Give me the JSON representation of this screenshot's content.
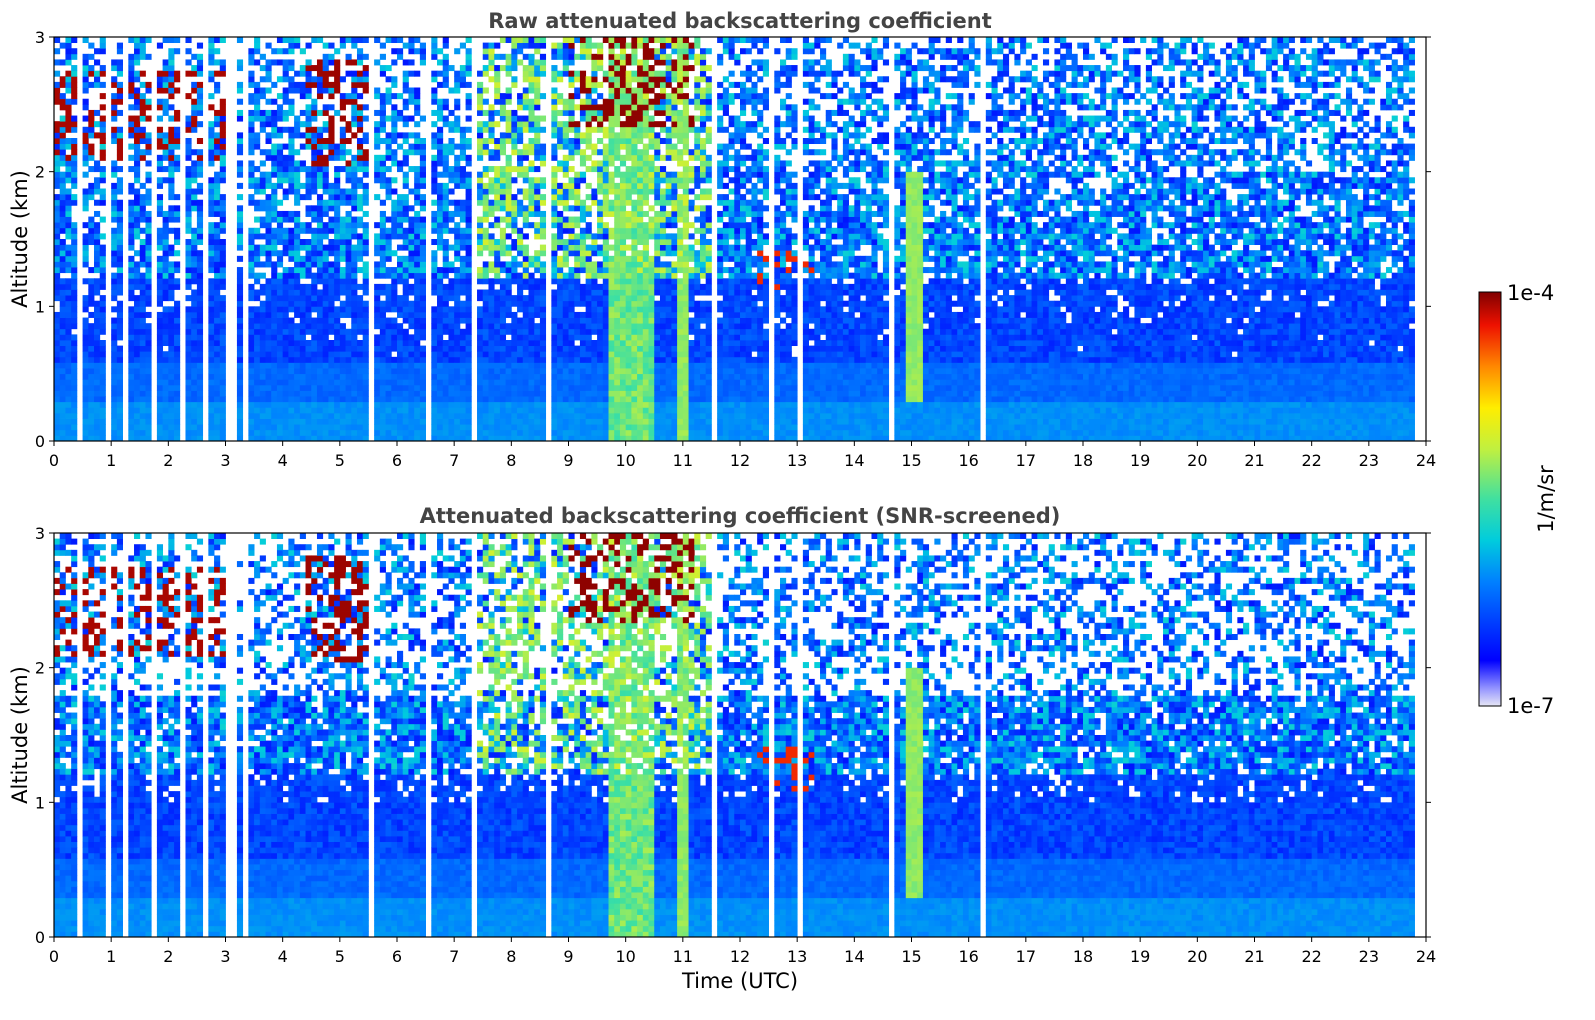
{
  "chart_data": [
    {
      "type": "heatmap",
      "title": "Raw attenuated backscattering coefficient",
      "xlabel": "",
      "ylabel": "Altitude (km)",
      "xlim": [
        0,
        24
      ],
      "ylim": [
        0,
        3
      ],
      "xticks": [
        0,
        1,
        2,
        3,
        4,
        5,
        6,
        7,
        8,
        9,
        10,
        11,
        12,
        13,
        14,
        15,
        16,
        17,
        18,
        19,
        20,
        21,
        22,
        23,
        24
      ],
      "yticks": [
        0,
        1,
        2,
        3
      ],
      "time_end": 23.8,
      "screened": false,
      "rows": 72,
      "cols": 240,
      "features": [
        {
          "kind": "fog_column",
          "t": [
            9.7,
            10.5
          ],
          "level": 0.58
        },
        {
          "kind": "bright_column",
          "t": [
            10.9,
            11.05
          ],
          "level": 0.55
        },
        {
          "kind": "aerosol_layer",
          "t": [
            7.3,
            11.5
          ],
          "z": [
            1.2,
            3.0
          ],
          "level": 0.62
        },
        {
          "kind": "cloud",
          "t": [
            0.0,
            3.2
          ],
          "z": [
            2.1,
            2.75
          ],
          "level": 0.97
        },
        {
          "kind": "cloud",
          "t": [
            4.4,
            5.5
          ],
          "z": [
            2.05,
            2.85
          ],
          "level": 0.98
        },
        {
          "kind": "cloud",
          "t": [
            9.0,
            11.2
          ],
          "z": [
            2.35,
            3.0
          ],
          "level": 0.99
        },
        {
          "kind": "cloud",
          "t": [
            12.3,
            13.3
          ],
          "z": [
            1.1,
            1.4
          ],
          "level": 0.9
        },
        {
          "kind": "plume",
          "t": [
            14.9,
            15.2
          ],
          "z": [
            0.3,
            2.0
          ],
          "level": 0.55
        }
      ]
    },
    {
      "type": "heatmap",
      "title": "Attenuated backscattering coefficient (SNR-screened)",
      "xlabel": "Time (UTC)",
      "ylabel": "Altitude (km)",
      "xlim": [
        0,
        24
      ],
      "ylim": [
        0,
        3
      ],
      "xticks": [
        0,
        1,
        2,
        3,
        4,
        5,
        6,
        7,
        8,
        9,
        10,
        11,
        12,
        13,
        14,
        15,
        16,
        17,
        18,
        19,
        20,
        21,
        22,
        23,
        24
      ],
      "yticks": [
        0,
        1,
        2,
        3
      ],
      "time_end": 23.8,
      "screened": true,
      "rows": 72,
      "cols": 240,
      "features": [
        {
          "kind": "fog_column",
          "t": [
            9.7,
            10.5
          ],
          "level": 0.58
        },
        {
          "kind": "bright_column",
          "t": [
            10.9,
            11.05
          ],
          "level": 0.55
        },
        {
          "kind": "aerosol_layer",
          "t": [
            7.3,
            11.5
          ],
          "z": [
            1.2,
            3.0
          ],
          "level": 0.62
        },
        {
          "kind": "cloud",
          "t": [
            0.0,
            3.2
          ],
          "z": [
            2.1,
            2.75
          ],
          "level": 0.97
        },
        {
          "kind": "cloud",
          "t": [
            4.4,
            5.5
          ],
          "z": [
            2.05,
            2.85
          ],
          "level": 0.98
        },
        {
          "kind": "cloud",
          "t": [
            9.0,
            11.2
          ],
          "z": [
            2.35,
            3.0
          ],
          "level": 0.99
        },
        {
          "kind": "cloud",
          "t": [
            12.3,
            13.3
          ],
          "z": [
            1.1,
            1.4
          ],
          "level": 0.9
        },
        {
          "kind": "plume",
          "t": [
            14.9,
            15.2
          ],
          "z": [
            0.3,
            2.0
          ],
          "level": 0.55
        }
      ]
    }
  ],
  "colorbar": {
    "max_label": "1e-4",
    "min_label": "1e-7",
    "unit_label": "1/m/sr",
    "colormap": "jet"
  }
}
